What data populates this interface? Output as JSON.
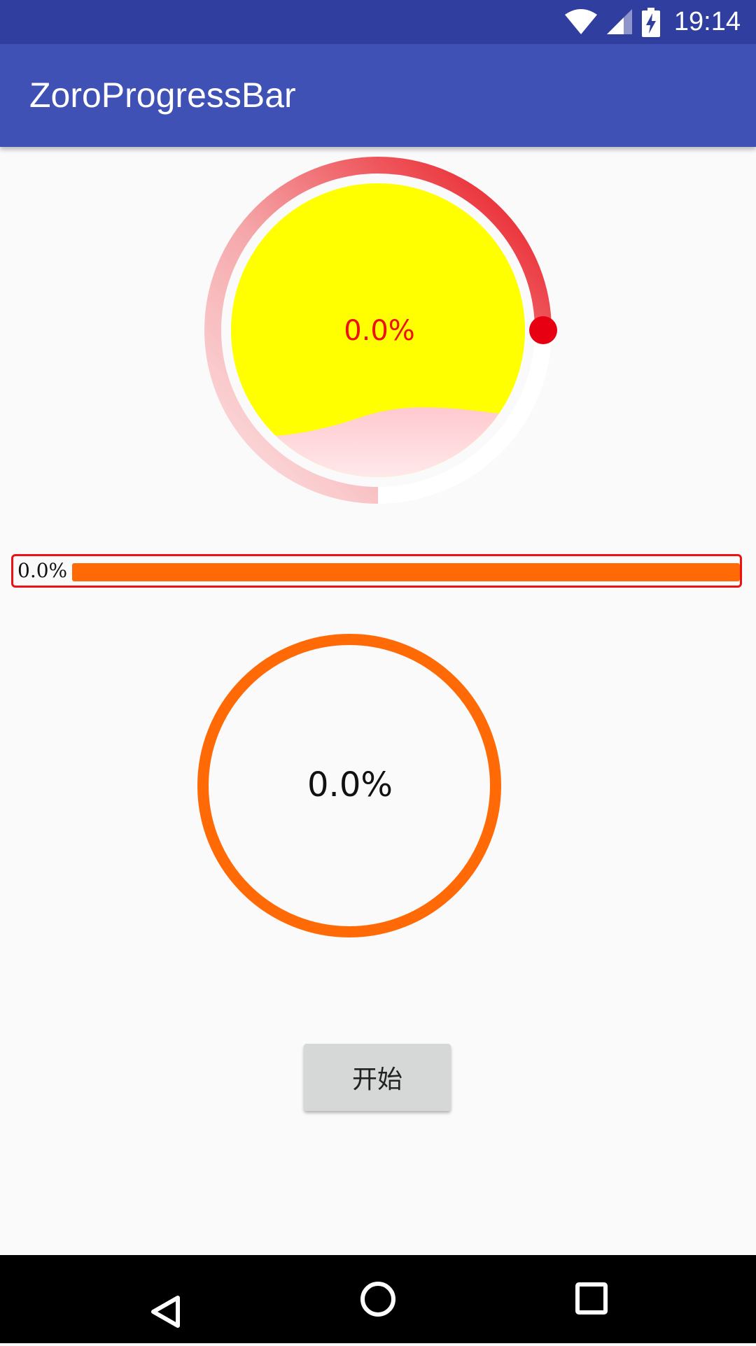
{
  "status_bar": {
    "time": "19:14",
    "icons": [
      "wifi-icon",
      "cell-signal-icon",
      "battery-charging-icon"
    ],
    "background": "#303f9f"
  },
  "app_bar": {
    "title": "ZoroProgressBar",
    "background": "#3f51b5"
  },
  "circle_progress": {
    "label": "0.0%",
    "progress": 0.0,
    "fill_color": "#ffff00",
    "ring_color": "#ee1111",
    "wave_color": "#ffd6d9",
    "label_color": "#ee1111"
  },
  "linear_progress": {
    "label": "0.0%",
    "progress": 0.0,
    "border_color": "#ee1111",
    "track_color": "#ff6a06"
  },
  "ring_progress": {
    "label": "0.0%",
    "progress": 0.0,
    "ring_color": "#ff6a06"
  },
  "start_button": {
    "label": "开始"
  },
  "nav_bar": {
    "icons": [
      "back-icon",
      "home-icon",
      "recents-icon"
    ]
  }
}
